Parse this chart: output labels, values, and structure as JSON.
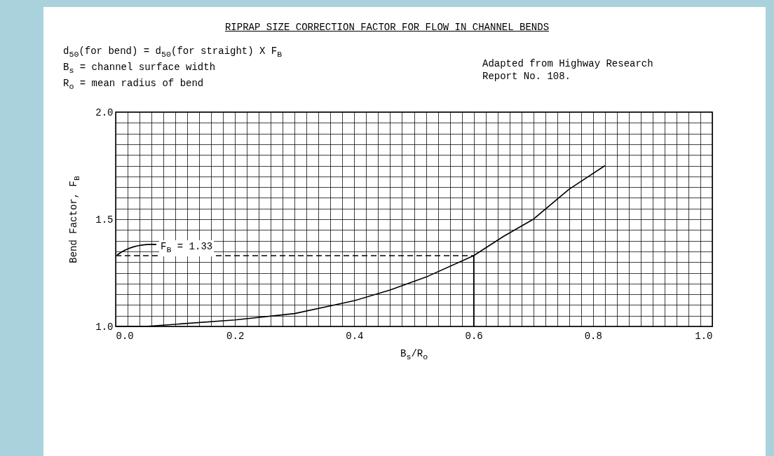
{
  "chart_data": {
    "type": "line",
    "title": "RIPRAP SIZE CORRECTION FACTOR FOR FLOW IN CHANNEL BENDS",
    "xlabel": "B$_{s}$/R$_{o}$",
    "ylabel": "Bend Factor, F$_{B}$",
    "annotations": [
      "d$_{50}$(for bend) = d$_{50}$(for straight) X F$_{B}$",
      "B$_{s}$ = channel surface width",
      "R$_{o}$ = mean radius of bend",
      "Adapted from Highway Research Report No. 108."
    ],
    "x": [
      0,
      0.05,
      0.1,
      0.2,
      0.3,
      0.4,
      0.46,
      0.52,
      0.6,
      0.65,
      0.7,
      0.76,
      0.82
    ],
    "series": [
      {
        "color": "#000000",
        "values": [
          1.0,
          1.0,
          1.01,
          1.03,
          1.06,
          1.12,
          1.17,
          1.23,
          1.33,
          1.42,
          1.5,
          1.64,
          1.75
        ]
      }
    ],
    "xlim": [
      0,
      1
    ],
    "ylim": [
      1,
      2
    ],
    "xticks": [
      {
        "value": 0,
        "label": "0.0"
      },
      0.2,
      0.4,
      0.6,
      0.8,
      {
        "value": 1,
        "label": "1.0"
      }
    ],
    "yticks": [
      {
        "value": 1,
        "label": "1.0"
      },
      1.5,
      {
        "value": 2,
        "label": "2.0"
      }
    ],
    "ref_lines": [
      {
        "axis": "y",
        "value": 1.33,
        "label": "F$_{B}$ = 1.33",
        "line_style": "dashed",
        "color": "#000000"
      },
      {
        "axis": "x",
        "value": 0.6,
        "color": "#000000"
      }
    ],
    "grid": true,
    "marker": "none",
    "line_style": "solid"
  }
}
